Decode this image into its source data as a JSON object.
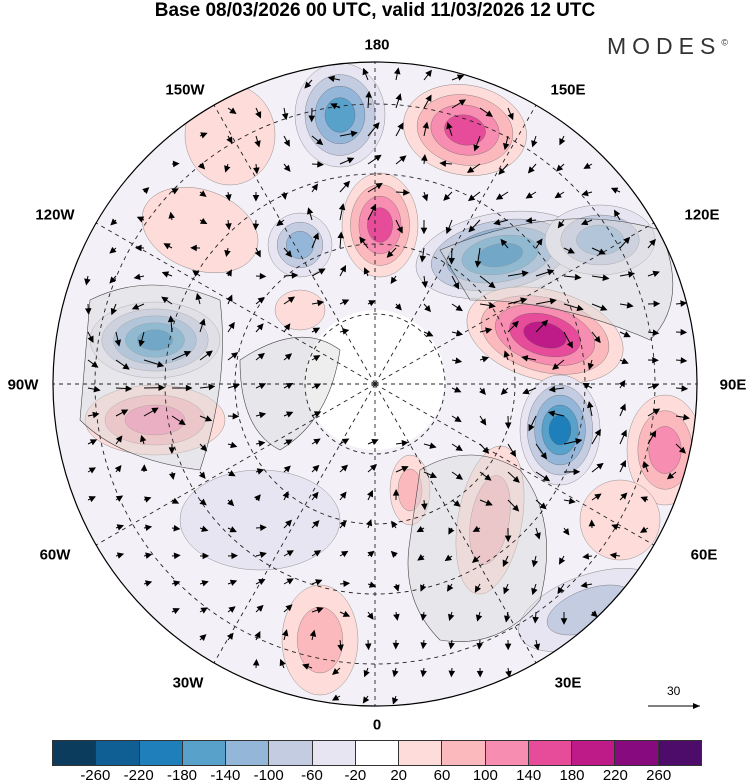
{
  "title": "Base 08/03/2026 00 UTC, valid 11/03/2026 12 UTC",
  "logo": "MODES",
  "logo_mark": "©",
  "longitude_labels": {
    "180": "180",
    "150E": "150E",
    "120E": "120E",
    "90E": "90E",
    "60E": "60E",
    "30E": "30E",
    "0": "0",
    "30W": "30W",
    "60W": "60W",
    "90W": "90W",
    "120W": "120W",
    "150W": "150W"
  },
  "vector_reference": "30",
  "colorbar": {
    "colors": [
      "#0b3c5d",
      "#0f5f95",
      "#1e7fba",
      "#57a1cb",
      "#94b6d9",
      "#c4cce2",
      "#e7e5f1",
      "#ffffff",
      "#fddcd9",
      "#fbb9be",
      "#f78db0",
      "#e74c9b",
      "#be1a88",
      "#870a7f",
      "#4d0c69"
    ],
    "ticks": [
      "-260",
      "-220",
      "-180",
      "-140",
      "-100",
      "-60",
      "-20",
      "20",
      "60",
      "100",
      "140",
      "180",
      "220",
      "260"
    ]
  }
}
